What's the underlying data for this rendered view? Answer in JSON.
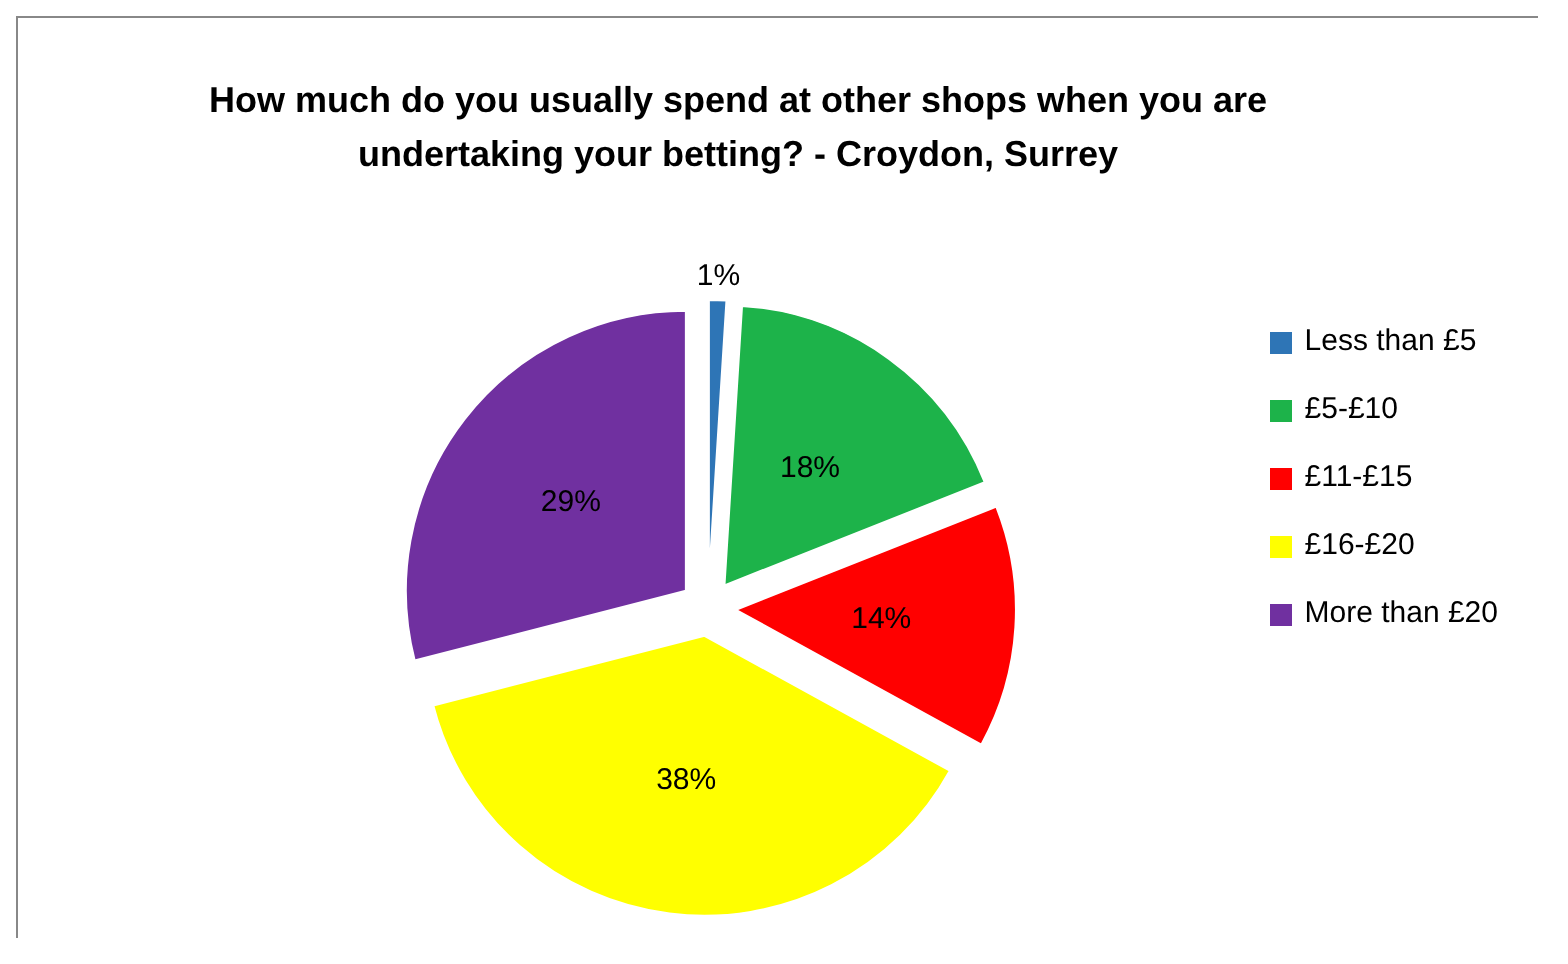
{
  "chart_data": {
    "type": "pie",
    "title": "How much do you usually spend at other shops when you are undertaking your betting? - Croydon, Surrey",
    "categories": [
      "Less than £5",
      "£5-£10",
      "£11-£15",
      "£16-£20",
      "More than £20"
    ],
    "values": [
      1,
      18,
      14,
      38,
      29
    ],
    "colors": [
      "#2e75b6",
      "#1db34a",
      "#ff0000",
      "#ffff00",
      "#7030a0"
    ],
    "value_labels": [
      "1%",
      "18%",
      "14%",
      "38%",
      "29%"
    ],
    "legend": "right"
  }
}
